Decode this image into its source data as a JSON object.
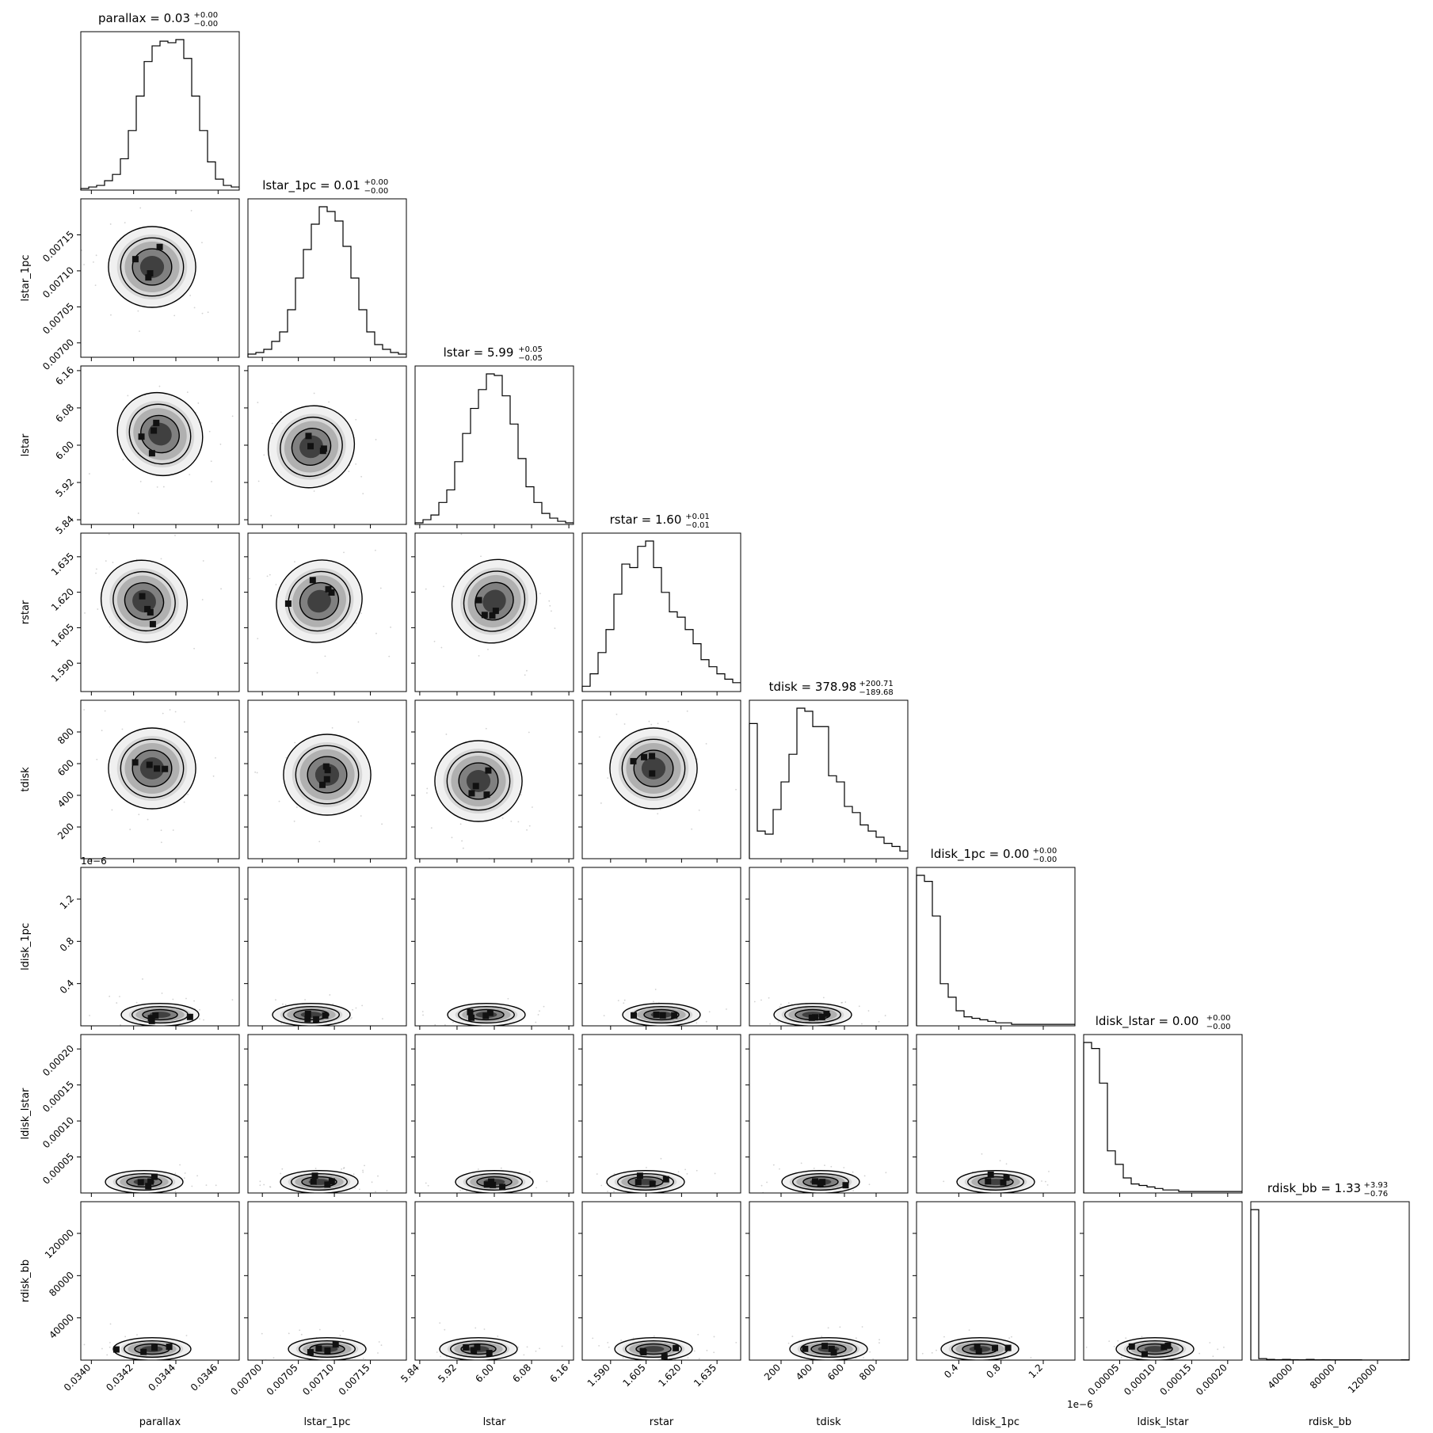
{
  "chart_data": {
    "type": "corner",
    "title": "",
    "parameters": [
      {
        "name": "parallax",
        "title_value": "0.03",
        "title_plus": "+0.00",
        "title_minus": "−0.00",
        "range": [
          0.03395,
          0.0347
        ],
        "ticks": [
          0.034,
          0.0342,
          0.0344,
          0.0346
        ],
        "tick_labels": [
          "0.0340",
          "0.0342",
          "0.0344",
          "0.0346"
        ],
        "median": 0.03435,
        "sigma": 6e-05
      },
      {
        "name": "lstar_1pc",
        "title_value": "0.01",
        "title_plus": "+0.00",
        "title_minus": "−0.00",
        "range": [
          0.00698,
          0.0072
        ],
        "ticks": [
          0.007,
          0.00705,
          0.0071,
          0.00715
        ],
        "tick_labels": [
          "0.00700",
          "0.00705",
          "0.00710",
          "0.00715"
        ],
        "median": 0.00709,
        "sigma": 2e-05
      },
      {
        "name": "lstar",
        "title_value": "5.99",
        "title_plus": "+0.05",
        "title_minus": "−0.05",
        "range": [
          5.83,
          6.17
        ],
        "ticks": [
          5.84,
          5.92,
          6.0,
          6.08,
          6.16
        ],
        "tick_labels": [
          "5.84",
          "5.92",
          "6.00",
          "6.08",
          "6.16"
        ],
        "median": 5.99,
        "sigma": 0.05
      },
      {
        "name": "rstar",
        "title_value": "1.60",
        "title_plus": "+0.01",
        "title_minus": "−0.01",
        "range": [
          1.578,
          1.645
        ],
        "ticks": [
          1.59,
          1.605,
          1.62,
          1.635
        ],
        "tick_labels": [
          "1.590",
          "1.605",
          "1.620",
          "1.635"
        ],
        "median": 1.605,
        "sigma": 0.01
      },
      {
        "name": "tdisk",
        "title_value": "378.98",
        "title_plus": "+200.71",
        "title_minus": "−189.68",
        "range": [
          0,
          1000
        ],
        "ticks": [
          200,
          400,
          600,
          800
        ],
        "tick_labels": [
          "200",
          "400",
          "600",
          "800"
        ],
        "median": 378.98,
        "sigma": 195
      },
      {
        "name": "ldisk_1pc",
        "title_value": "0.00",
        "title_plus": "+0.00",
        "title_minus": "−0.00",
        "range": [
          0,
          1.5
        ],
        "ticks": [
          0.4,
          0.8,
          1.2
        ],
        "tick_labels": [
          "0.4",
          "0.8",
          "1.2"
        ],
        "offset_text": "1e−6",
        "median": 0.1,
        "sigma": 0.15
      },
      {
        "name": "ldisk_lstar",
        "title_value": "0.00",
        "title_plus": "+0.00",
        "title_minus": "−0.00",
        "range": [
          0,
          0.00022
        ],
        "ticks": [
          5e-05,
          0.0001,
          0.00015,
          0.0002
        ],
        "tick_labels": [
          "0.00005",
          "0.00010",
          "0.00015",
          "0.00020"
        ],
        "median": 1.5e-05,
        "sigma": 2e-05
      },
      {
        "name": "rdisk_bb",
        "title_value": "1.33",
        "title_plus": "+3.93",
        "title_minus": "−0.76",
        "range": [
          0,
          150000
        ],
        "ticks": [
          40000,
          80000,
          120000
        ],
        "tick_labels": [
          "40000",
          "80000",
          "120000"
        ],
        "median": 1.33,
        "sigma": 4
      }
    ],
    "histograms": [
      {
        "param": "parallax",
        "values": [
          1,
          2,
          3,
          6,
          10,
          20,
          38,
          60,
          82,
          92,
          95,
          94,
          96,
          84,
          60,
          38,
          18,
          7,
          3,
          2
        ]
      },
      {
        "param": "lstar_1pc",
        "values": [
          2,
          3,
          5,
          10,
          16,
          30,
          50,
          68,
          84,
          95,
          92,
          86,
          70,
          50,
          30,
          16,
          8,
          5,
          3,
          2
        ]
      },
      {
        "param": "lstar",
        "values": [
          1,
          3,
          6,
          14,
          22,
          40,
          58,
          74,
          86,
          96,
          95,
          82,
          64,
          42,
          24,
          14,
          7,
          4,
          2,
          1
        ]
      },
      {
        "param": "rstar",
        "values": [
          3,
          10,
          22,
          35,
          55,
          72,
          70,
          82,
          85,
          70,
          56,
          45,
          42,
          35,
          27,
          18,
          14,
          10,
          7,
          5
        ]
      },
      {
        "param": "tdisk",
        "values": [
          88,
          18,
          16,
          32,
          50,
          68,
          98,
          96,
          86,
          86,
          54,
          50,
          34,
          30,
          22,
          18,
          14,
          10,
          8,
          5
        ]
      },
      {
        "param": "ldisk_1pc",
        "values": [
          100,
          96,
          73,
          28,
          19,
          10,
          6,
          5,
          4,
          3,
          2,
          2,
          1,
          1,
          1,
          1,
          1,
          1,
          1,
          1
        ]
      },
      {
        "param": "ldisk_lstar",
        "values": [
          100,
          96,
          73,
          28,
          19,
          10,
          6,
          5,
          4,
          3,
          2,
          2,
          1,
          1,
          1,
          1,
          1,
          1,
          1,
          1
        ]
      },
      {
        "param": "rdisk_bb",
        "values": [
          100,
          1,
          0.5,
          0.3,
          0.5,
          0.3,
          0.2,
          0.5,
          0.2,
          0.3,
          0.2,
          0.2,
          0.2,
          0.2,
          0.1,
          0.1,
          0.1,
          0.1,
          0.1,
          0.2
        ]
      }
    ]
  }
}
